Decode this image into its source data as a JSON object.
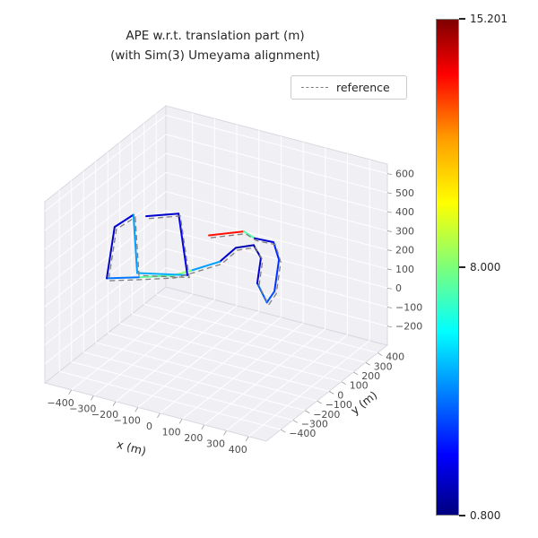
{
  "chart_data": {
    "type": "line",
    "projection": "3d",
    "title": "APE w.r.t. translation part (m)\n(with Sim(3) Umeyama alignment)",
    "legend_label": "reference",
    "xlabel": "x (m)",
    "ylabel": "y (m)",
    "xlim": [
      -520,
      480
    ],
    "ylim": [
      -520,
      480
    ],
    "zlim": [
      -300,
      650
    ],
    "xticks": {
      "values": [
        -400,
        -300,
        -200,
        -100,
        0,
        100,
        200,
        300,
        400
      ],
      "labels": [
        "−400",
        "−300",
        "−200",
        "−100",
        "0",
        "100",
        "200",
        "300",
        "400"
      ]
    },
    "yticks": {
      "values": [
        -400,
        -300,
        -200,
        -100,
        0,
        100,
        200,
        300,
        400
      ],
      "labels": [
        "−400",
        "−300",
        "−200",
        "−100",
        "0",
        "100",
        "200",
        "300",
        "400"
      ]
    },
    "zticks": {
      "values": [
        -200,
        -100,
        0,
        100,
        200,
        300,
        400,
        500,
        600
      ],
      "labels": [
        "−200",
        "−100",
        "0",
        "100",
        "200",
        "300",
        "400",
        "500",
        "600"
      ]
    },
    "colorbar": {
      "colormap": "jet",
      "min": 0.8,
      "max": 15.201,
      "ticks": [
        {
          "value": 15.201,
          "label": "15.201"
        },
        {
          "value": 8.0,
          "label": "8.000"
        },
        {
          "value": 0.8,
          "label": "0.800"
        }
      ]
    },
    "series": [
      {
        "name": "ape_colored_trajectory",
        "style": "solid",
        "color_by": "ape",
        "points": [
          [
            -138,
            137,
            260,
            13.8
          ],
          [
            -39,
            244,
            257,
            12.6
          ],
          [
            24,
            217,
            254,
            2.2
          ],
          [
            104,
            228,
            252,
            1.6
          ],
          [
            195,
            106,
            250,
            4.6
          ],
          [
            314,
            -149,
            248,
            2.0
          ],
          [
            334,
            -248,
            246,
            5.4
          ],
          [
            221,
            -121,
            248,
            2.4
          ],
          [
            126,
            83,
            250,
            1.5
          ],
          [
            48,
            166,
            251,
            1.3
          ],
          [
            -1,
            108,
            251,
            1.7
          ],
          [
            3,
            -32,
            250,
            2.1
          ],
          [
            -57,
            -159,
            249,
            7.6
          ],
          [
            -98,
            -234,
            248,
            8.8
          ],
          [
            -207,
            -316,
            247,
            6.4
          ],
          [
            -312,
            -389,
            246,
            2.1
          ],
          [
            -500,
            20,
            252,
            1.5
          ],
          [
            -486,
            150,
            255,
            2.6
          ],
          [
            -228,
            -291,
            250,
            7.1
          ],
          [
            -49,
            -204,
            250,
            3.0
          ],
          [
            -337,
            250,
            256,
            1.6
          ],
          [
            -435,
            162,
            257,
            2.2
          ]
        ]
      },
      {
        "name": "reference",
        "style": "dashed",
        "color": "#7f7f7f",
        "offset": [
          8,
          0,
          -10
        ]
      }
    ],
    "style_colors": {
      "pane": "#f0f0f4",
      "pane_edge": "#d8d8e0",
      "grid": "#ffffff",
      "tick_text": "#4d4d4d",
      "reference_line": "#7f7f7f"
    }
  }
}
